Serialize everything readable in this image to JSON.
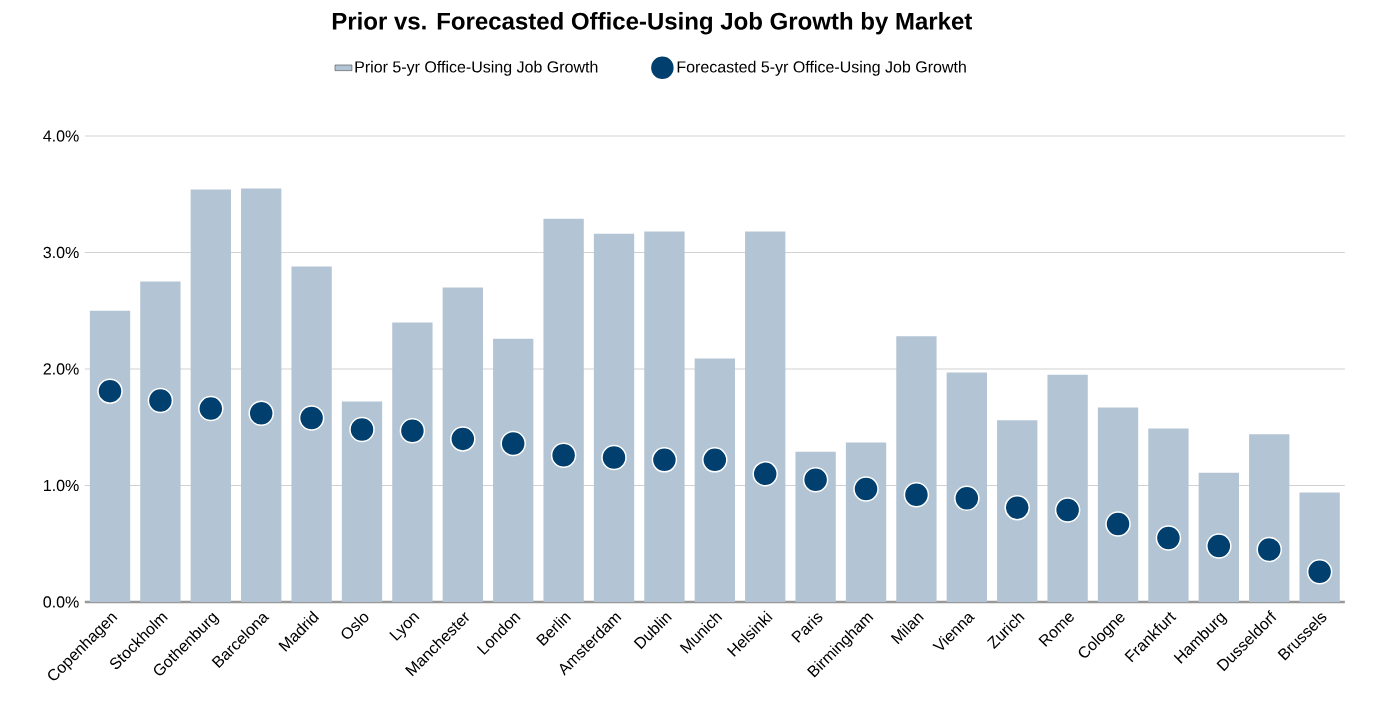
{
  "chart_data": {
    "type": "bar",
    "title": "Prior vs. Forecasted Office-Using Job Growth by Market",
    "categories": [
      "Copenhagen",
      "Stockholm",
      "Gothenburg",
      "Barcelona",
      "Madrid",
      "Oslo",
      "Lyon",
      "Manchester",
      "London",
      "Berlin",
      "Amsterdam",
      "Dublin",
      "Munich",
      "Helsinki",
      "Paris",
      "Birmingham",
      "Milan",
      "Vienna",
      "Zurich",
      "Rome",
      "Cologne",
      "Frankfurt",
      "Hamburg",
      "Dusseldorf",
      "Brussels"
    ],
    "series": [
      {
        "name": "Prior 5-yr Office-Using Job Growth",
        "color": "#b3c4d4",
        "values": [
          2.5,
          2.75,
          3.54,
          3.55,
          2.88,
          1.72,
          2.4,
          2.7,
          2.26,
          3.29,
          3.16,
          3.18,
          2.09,
          3.18,
          1.29,
          1.37,
          2.28,
          1.97,
          1.56,
          1.95,
          1.67,
          1.49,
          1.11,
          1.44,
          0.94
        ]
      },
      {
        "name": "Forecasted 5-yr Office-Using Job Growth",
        "type": "scatter",
        "color": "#003f6e",
        "marker": "circle",
        "values": [
          1.81,
          1.73,
          1.66,
          1.62,
          1.58,
          1.48,
          1.47,
          1.4,
          1.36,
          1.26,
          1.24,
          1.22,
          1.22,
          1.1,
          1.05,
          0.97,
          0.92,
          0.89,
          0.81,
          0.79,
          0.67,
          0.55,
          0.48,
          0.45,
          0.26
        ]
      }
    ],
    "ylim": [
      0,
      4
    ],
    "yticks": [
      {
        "value": 0,
        "label": "0.0%"
      },
      {
        "value": 1,
        "label": "1.0%"
      },
      {
        "value": 2,
        "label": "2.0%"
      },
      {
        "value": 3,
        "label": "3.0%"
      },
      {
        "value": 4,
        "label": "4.0%"
      }
    ],
    "grid": "y",
    "legend": "top"
  }
}
